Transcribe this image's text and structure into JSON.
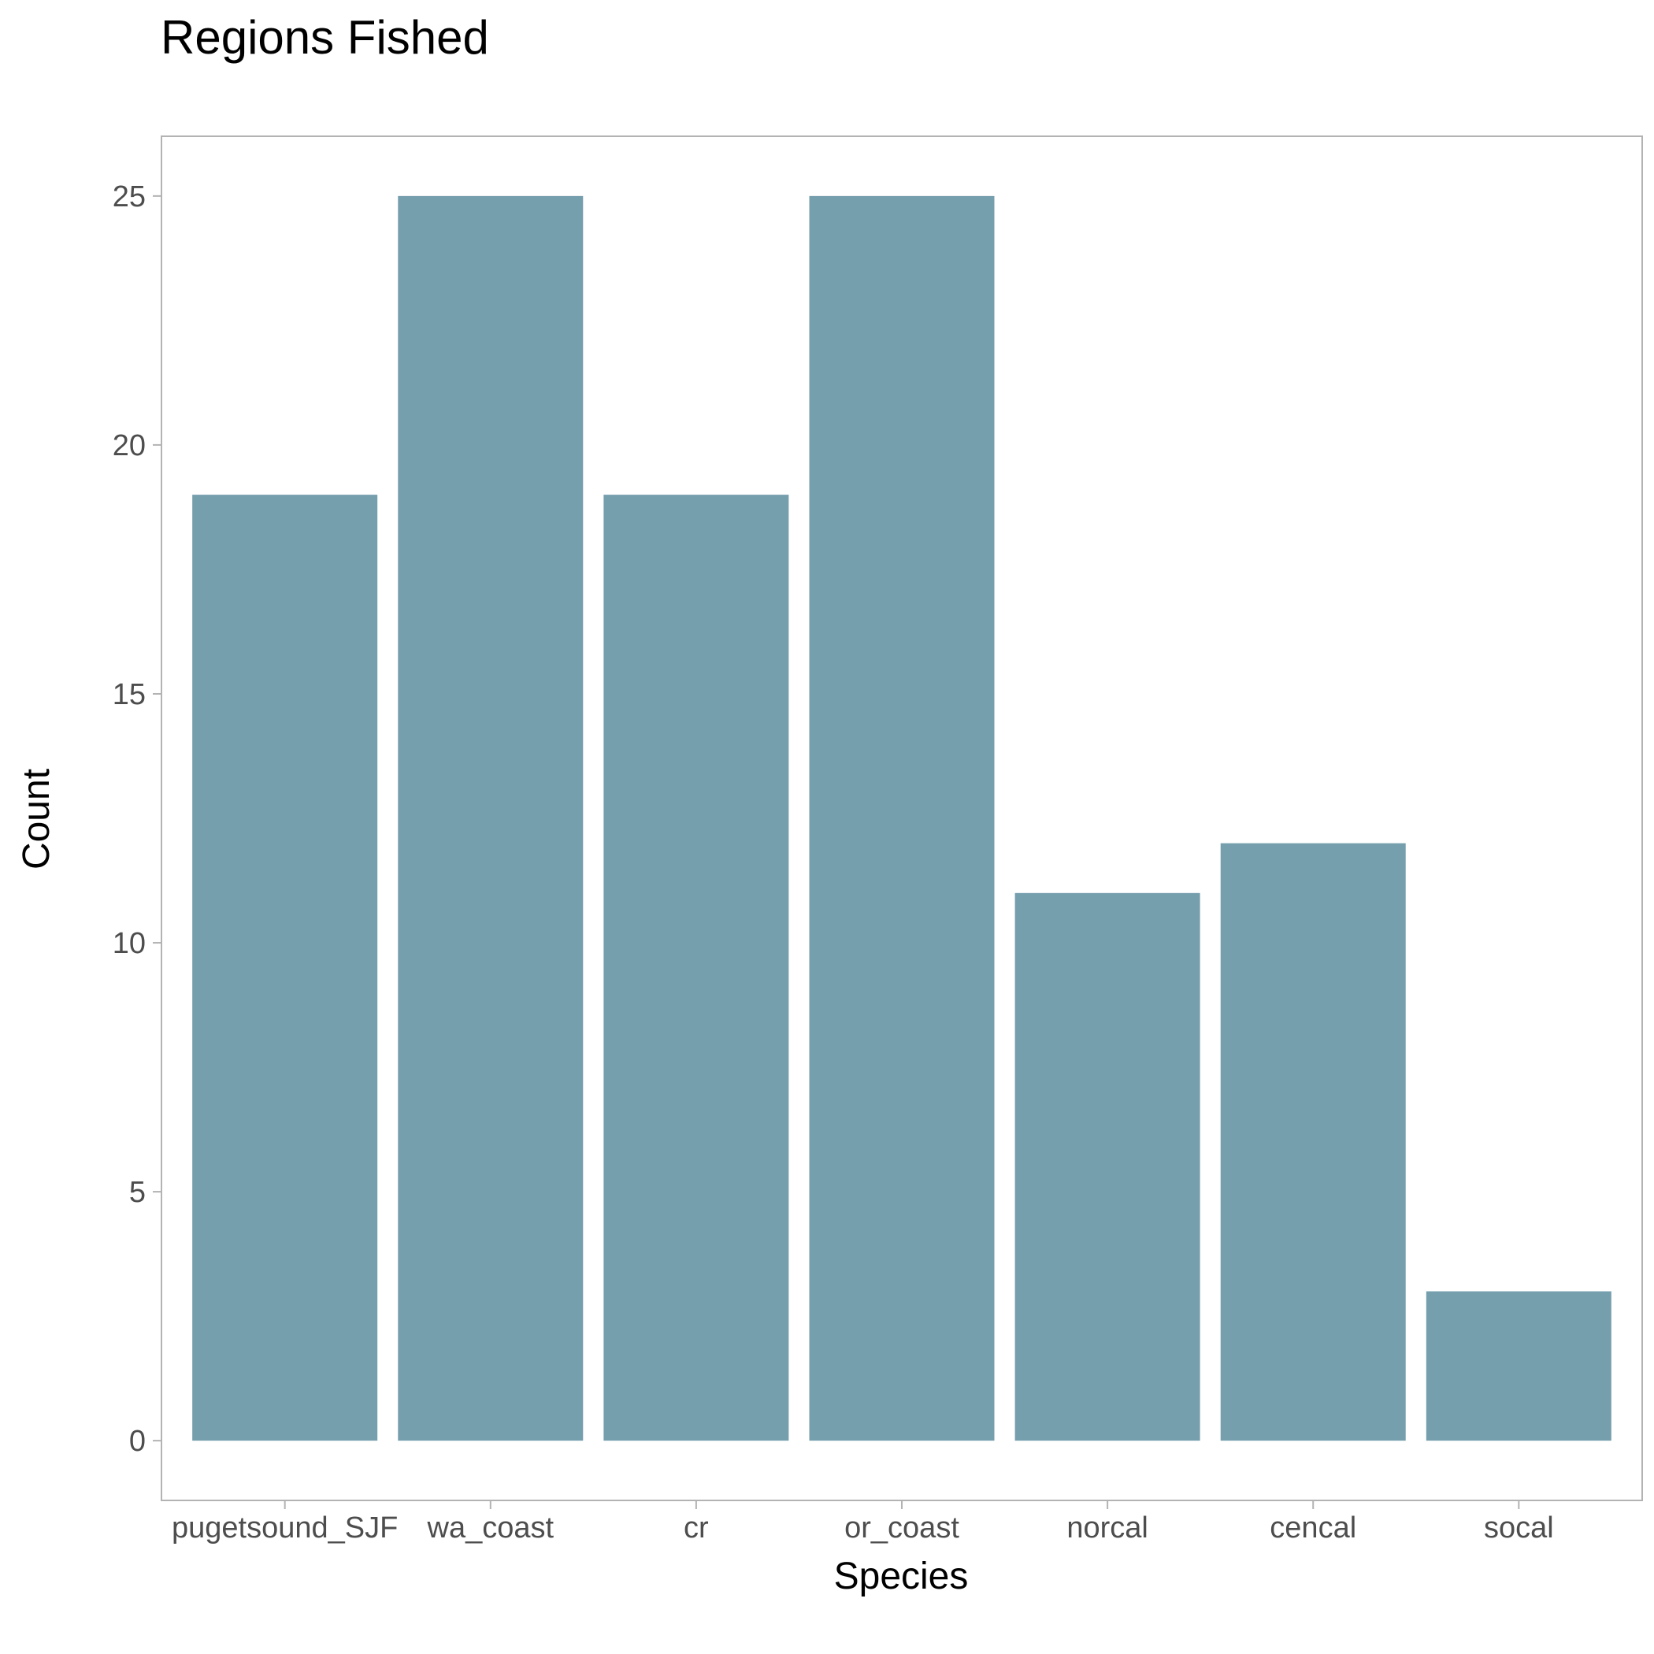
{
  "chart_data": {
    "type": "bar",
    "title": "Regions Fished",
    "xlabel": "Species",
    "ylabel": "Count",
    "categories": [
      "pugetsound_SJF",
      "wa_coast",
      "cr",
      "or_coast",
      "norcal",
      "cencal",
      "socal"
    ],
    "values": [
      19,
      25,
      19,
      25,
      11,
      12,
      3
    ],
    "ylim": [
      -1.2,
      26.2
    ],
    "yticks": [
      0,
      5,
      10,
      15,
      20,
      25
    ],
    "grid": false,
    "legend": "none",
    "colors": {
      "bar": "#769fae",
      "panel_border": "#b3b3b3",
      "tick": "#b3b3b3",
      "tick_label": "#4d4d4d",
      "text": "#000000"
    }
  }
}
